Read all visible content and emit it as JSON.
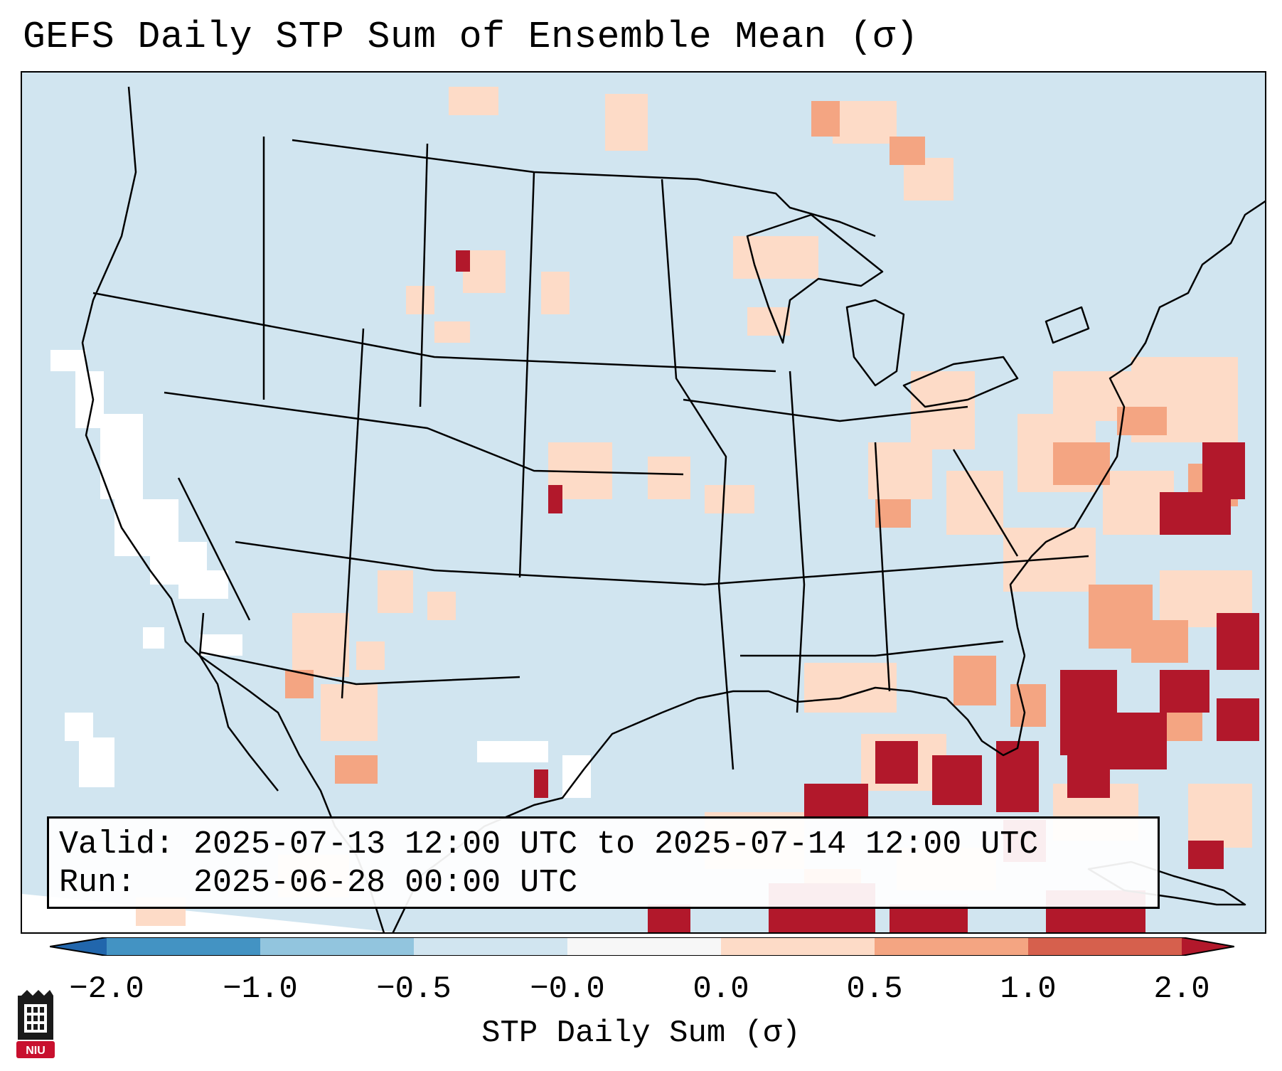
{
  "title": "GEFS Daily STP Sum of Ensemble Mean (σ)",
  "info": {
    "valid_line": "Valid: 2025-07-13 12:00 UTC to 2025-07-14 12:00 UTC",
    "run_line": "Run:   2025-06-28 00:00 UTC"
  },
  "colorbar": {
    "label": "STP Daily Sum (σ)",
    "ticks": [
      "−2.0",
      "−1.0",
      "−0.5",
      "−0.0",
      "0.0",
      "0.5",
      "1.0",
      "2.0"
    ],
    "colors": [
      "#4393c3",
      "#92c5de",
      "#d1e5f0",
      "#f7f7f7",
      "#fddbc7",
      "#f4a582",
      "#d6604d",
      "#b2182b"
    ],
    "under_color": "#2166ac",
    "over_color": "#b2182b"
  },
  "map": {
    "ocean_color": "#d1e5f0",
    "line_color": "#000000"
  },
  "logo": {
    "text": "NIU",
    "color": "#c8102e"
  }
}
